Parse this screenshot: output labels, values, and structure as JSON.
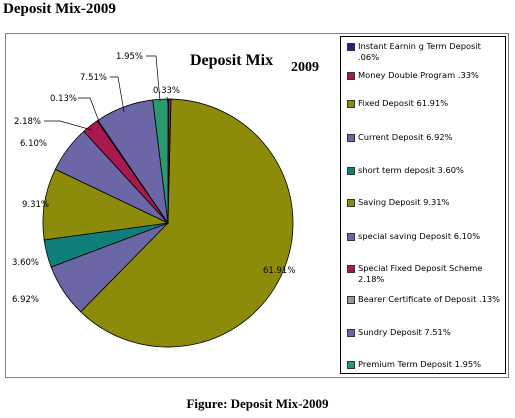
{
  "page": {
    "heading": "Deposit Mix-2009",
    "caption": "Figure: Deposit Mix-2009"
  },
  "chart_data": {
    "type": "pie",
    "title": "Deposit Mix",
    "title_year": "2009",
    "legend_position": "right",
    "slices": [
      {
        "name": "Instant Earnin g Term Deposit .06%",
        "label": "",
        "value": 0.06,
        "color": "#1f1f8f"
      },
      {
        "name": "Money Double Program .33%",
        "label": "0.33%",
        "value": 0.33,
        "color": "#9b1b4f"
      },
      {
        "name": "Fixed Deposit 61.91%",
        "label": "61.91%",
        "value": 61.91,
        "color": "#8c8c0a"
      },
      {
        "name": "Current Deposit 6.92%",
        "label": "6.92%",
        "value": 6.92,
        "color": "#6b66a6"
      },
      {
        "name": "short term deposit 3.60%",
        "label": "3.60%",
        "value": 3.6,
        "color": "#0f7f7b"
      },
      {
        "name": "Saving Deposit 9.31%",
        "label": "9.31%",
        "value": 9.31,
        "color": "#8c8c0a"
      },
      {
        "name": "special saving Deposit 6.10%",
        "label": "6.10%",
        "value": 6.1,
        "color": "#6b66a6"
      },
      {
        "name": "Special Fixed Deposit Scheme 2.18%",
        "label": "2.18%",
        "value": 2.18,
        "color": "#a8194f"
      },
      {
        "name": "Bearer Certificate of Deposit .13%",
        "label": "0.13%",
        "value": 0.13,
        "color": "#999999"
      },
      {
        "name": "Sundry Deposit 7.51%",
        "label": "7.51%",
        "value": 7.51,
        "color": "#6b66a6"
      },
      {
        "name": "Premium Term Deposit 1.95%",
        "label": "1.95%",
        "value": 1.95,
        "color": "#2a9a6e"
      }
    ]
  }
}
